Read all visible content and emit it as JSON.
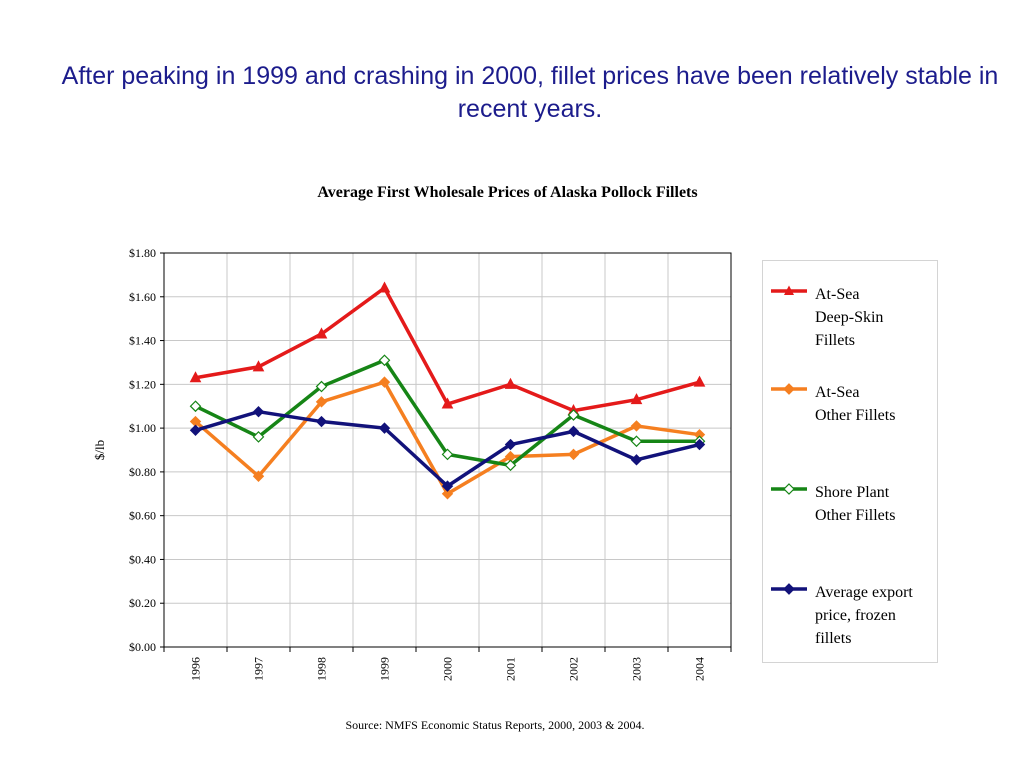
{
  "headline": "After peaking in 1999 and crashing in 2000, fillet prices have been relatively stable in recent years.",
  "source": "Source:  NMFS Economic Status Reports, 2000, 2003 & 2004.",
  "chart_data": {
    "type": "line",
    "title": "Average First Wholesale Prices of Alaska Pollock Fillets",
    "xlabel": "",
    "ylabel": "$/lb",
    "x": [
      "1996",
      "1997",
      "1998",
      "1999",
      "2000",
      "2001",
      "2002",
      "2003",
      "2004"
    ],
    "ylim": [
      0,
      1.8
    ],
    "yticks": [
      0,
      0.2,
      0.4,
      0.6,
      0.8,
      1.0,
      1.2,
      1.4,
      1.6,
      1.8
    ],
    "ytick_labels": [
      "$0.00",
      "$0.20",
      "$0.40",
      "$0.60",
      "$0.80",
      "$1.00",
      "$1.20",
      "$1.40",
      "$1.60",
      "$1.80"
    ],
    "grid": true,
    "legend_position": "right",
    "series": [
      {
        "name": "At-Sea Deep-Skin Fillets",
        "legend_lines": [
          "At-Sea",
          "Deep-Skin",
          "Fillets"
        ],
        "color": "#e41a1a",
        "marker": "triangle",
        "values": [
          1.23,
          1.28,
          1.43,
          1.64,
          1.11,
          1.2,
          1.08,
          1.13,
          1.21
        ]
      },
      {
        "name": "At-Sea Other Fillets",
        "legend_lines": [
          "At-Sea",
          "Other Fillets"
        ],
        "color": "#f57f20",
        "marker": "diamond",
        "values": [
          1.03,
          0.78,
          1.12,
          1.21,
          0.7,
          0.87,
          0.88,
          1.01,
          0.97
        ]
      },
      {
        "name": "Shore Plant Other Fillets",
        "legend_lines": [
          "Shore Plant",
          "Other Fillets"
        ],
        "color": "#168516",
        "marker": "diamond-open",
        "values": [
          1.1,
          0.96,
          1.19,
          1.31,
          0.88,
          0.83,
          1.06,
          0.94,
          0.94
        ]
      },
      {
        "name": "Average export price, frozen fillets",
        "legend_lines": [
          "Average export",
          "price, frozen",
          "fillets"
        ],
        "color": "#12127a",
        "marker": "diamond",
        "values": [
          0.99,
          1.075,
          1.03,
          1.0,
          0.735,
          0.925,
          0.985,
          0.855,
          0.925
        ]
      }
    ]
  }
}
